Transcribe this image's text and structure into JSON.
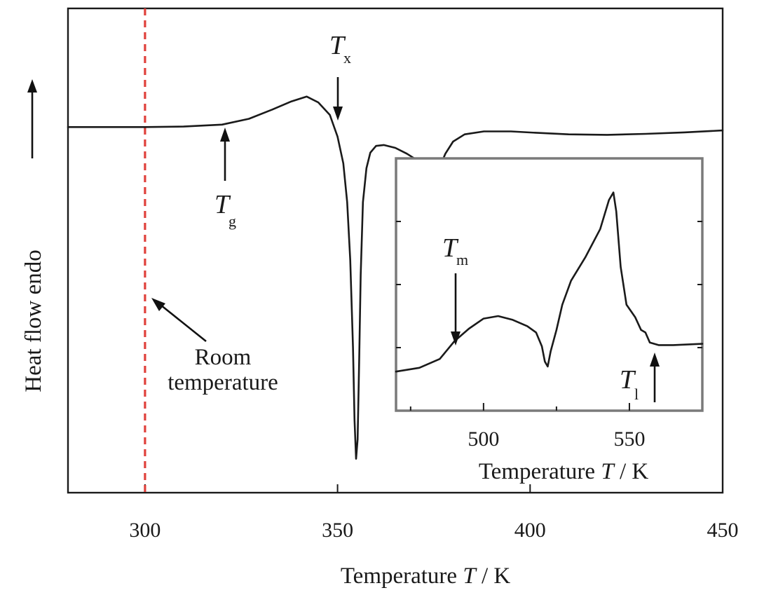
{
  "chart_data": [
    {
      "type": "line",
      "role": "main",
      "xlabel_text": "Temperature ",
      "xlabel_symbol": "T",
      "xlabel_unit": " / K",
      "ylabel": "Heat flow endo",
      "xlim": [
        280,
        450
      ],
      "xticks": [
        300,
        350,
        400,
        450
      ],
      "xtick_labels": [
        "300",
        "350",
        "400",
        "450"
      ],
      "ylim": [
        0,
        1
      ],
      "y_ticks_shown": false,
      "series": [
        {
          "x": [
            280,
            290,
            300,
            310,
            320,
            327,
            333,
            338,
            342,
            345,
            348,
            350,
            351.5,
            352.5,
            353.3,
            354,
            354.4,
            354.8,
            355.2,
            355.6,
            356,
            356.6,
            357.5,
            358.5,
            360,
            362,
            365,
            368,
            371,
            373.5,
            375.5,
            376.5,
            378,
            380,
            383,
            388,
            395,
            402,
            410,
            420,
            430,
            440,
            450
          ],
          "y": [
            0.755,
            0.755,
            0.755,
            0.756,
            0.76,
            0.772,
            0.791,
            0.808,
            0.818,
            0.806,
            0.78,
            0.735,
            0.68,
            0.6,
            0.48,
            0.3,
            0.15,
            0.07,
            0.11,
            0.27,
            0.45,
            0.6,
            0.67,
            0.702,
            0.716,
            0.718,
            0.712,
            0.7,
            0.685,
            0.672,
            0.662,
            0.672,
            0.7,
            0.725,
            0.74,
            0.746,
            0.746,
            0.743,
            0.74,
            0.739,
            0.741,
            0.744,
            0.748
          ]
        }
      ],
      "reference_line": {
        "x": 300,
        "color": "#e0413c",
        "style": "dashed"
      },
      "annotations": {
        "room": [
          "Room",
          "temperature"
        ],
        "tx": {
          "symbol": "T",
          "sub": "x",
          "x": 350
        },
        "tg": {
          "symbol": "T",
          "sub": "g",
          "x": 320
        }
      }
    },
    {
      "type": "line",
      "role": "inset",
      "xlabel_text": "Temperature ",
      "xlabel_symbol": "T",
      "xlabel_unit": " / K",
      "xlim": [
        470,
        575
      ],
      "xticks": [
        500,
        550
      ],
      "xtick_labels": [
        "500",
        "550"
      ],
      "minor_xticks": [
        475,
        525
      ],
      "ylim": [
        0,
        1
      ],
      "y_ticks_shown": false,
      "series": [
        {
          "x": [
            470,
            478,
            485,
            490,
            495,
            500,
            505,
            510,
            515,
            518,
            520,
            521,
            522,
            523,
            525,
            527,
            530,
            535,
            540,
            543,
            544.5,
            545.5,
            547,
            549,
            552,
            554,
            555.5,
            557,
            560,
            565,
            575
          ],
          "y": [
            0.155,
            0.17,
            0.205,
            0.275,
            0.325,
            0.365,
            0.375,
            0.36,
            0.335,
            0.31,
            0.255,
            0.195,
            0.175,
            0.235,
            0.32,
            0.42,
            0.515,
            0.61,
            0.72,
            0.835,
            0.865,
            0.79,
            0.57,
            0.42,
            0.37,
            0.32,
            0.31,
            0.27,
            0.26,
            0.26,
            0.265
          ]
        }
      ],
      "annotations": {
        "tm": {
          "symbol": "T",
          "sub": "m",
          "x": 485
        },
        "tl": {
          "symbol": "T",
          "sub": "l",
          "x": 557
        }
      }
    }
  ]
}
